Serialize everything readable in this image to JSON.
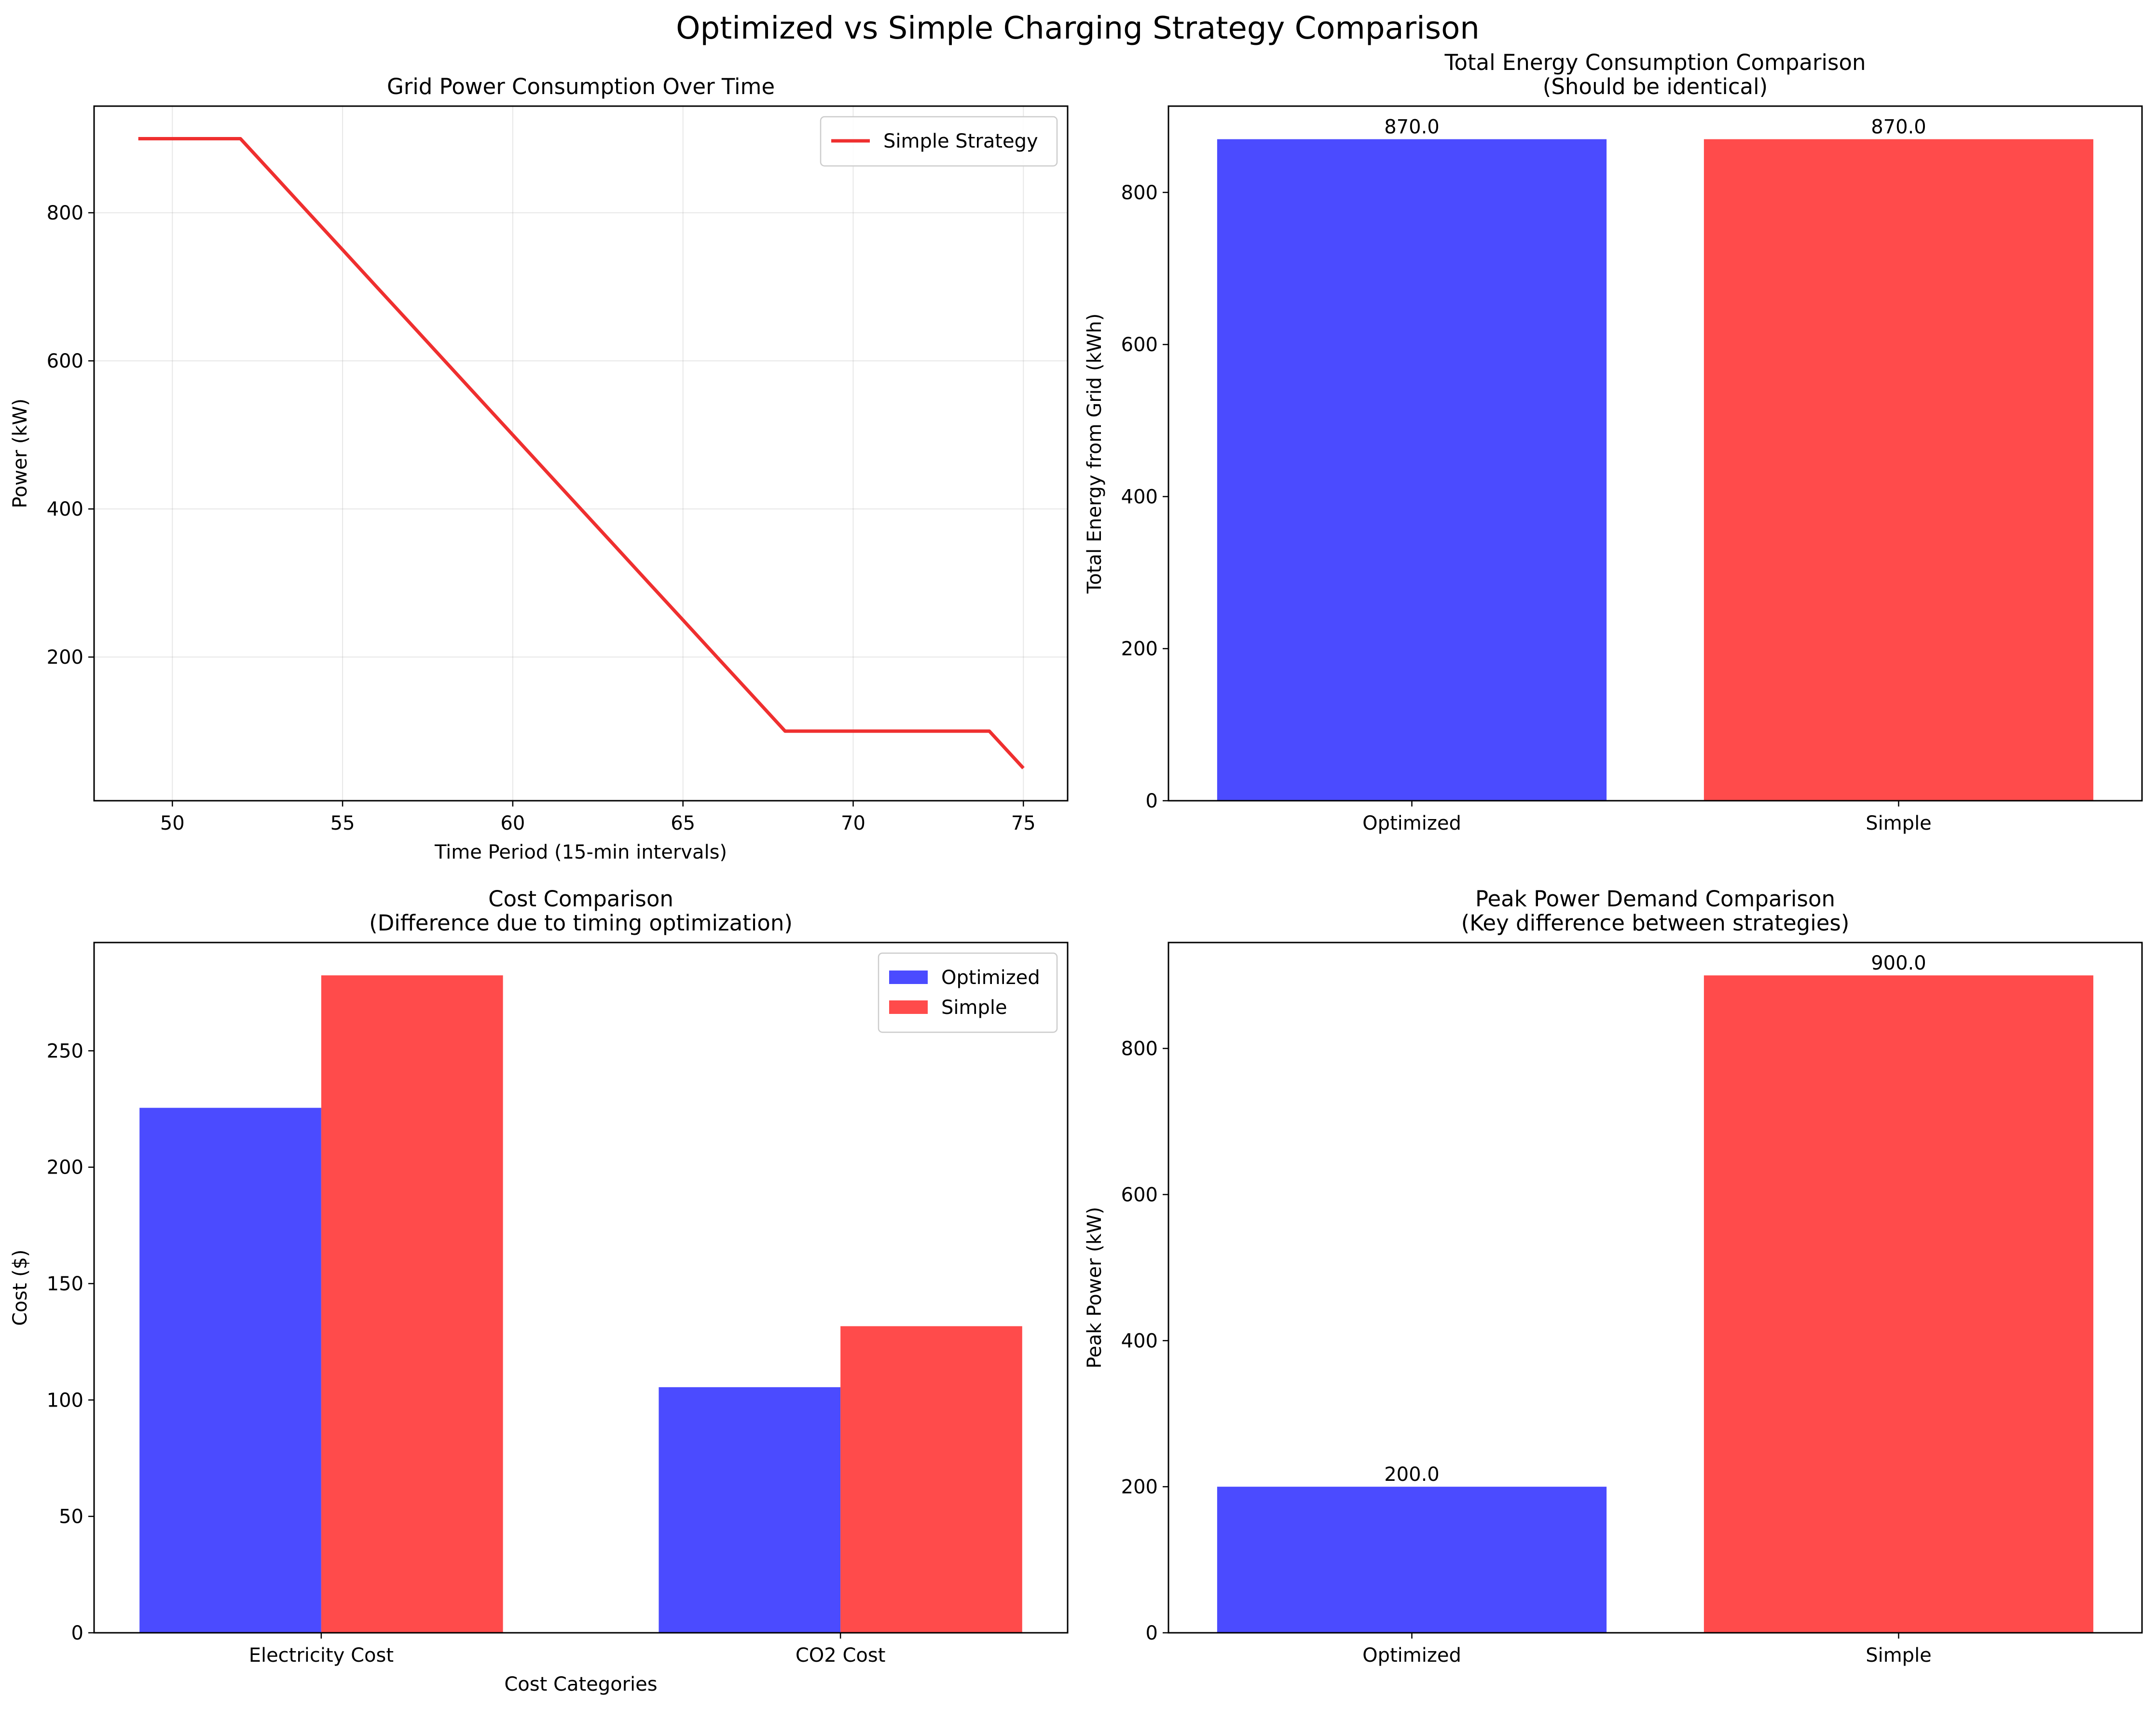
{
  "figure": {
    "title": "Optimized vs Simple Charging Strategy Comparison"
  },
  "colors": {
    "optimized": "#4b4bff",
    "simple": "#ff4b4b",
    "line": "#ef2f2f"
  },
  "chart_data": [
    {
      "id": "grid_power",
      "type": "line",
      "title": "Grid Power Consumption Over Time",
      "xlabel": "Time Period (15-min intervals)",
      "ylabel": "Power (kW)",
      "xlim": [
        47.7,
        76.3
      ],
      "ylim": [
        6,
        944
      ],
      "xticks": [
        50,
        55,
        60,
        65,
        70,
        75
      ],
      "yticks": [
        200,
        400,
        600,
        800
      ],
      "grid": true,
      "legend": "upper right",
      "series": [
        {
          "name": "Simple Strategy",
          "x": [
            49,
            50,
            51,
            52,
            53,
            54,
            55,
            56,
            57,
            58,
            59,
            60,
            61,
            62,
            63,
            64,
            65,
            66,
            67,
            68,
            69,
            70,
            71,
            72,
            73,
            74,
            75
          ],
          "y": [
            900,
            900,
            900,
            900,
            850,
            800,
            750,
            700,
            650,
            600,
            550,
            500,
            450,
            400,
            350,
            300,
            250,
            200,
            150,
            100,
            100,
            100,
            100,
            100,
            100,
            100,
            50
          ]
        }
      ]
    },
    {
      "id": "total_energy",
      "type": "bar",
      "title": "Total Energy Consumption Comparison\n(Should be identical)",
      "xlabel": "",
      "ylabel": "Total Energy from Grid (kWh)",
      "ylim": [
        0,
        913.5
      ],
      "yticks": [
        0,
        200,
        400,
        600,
        800
      ],
      "categories": [
        "Optimized",
        "Simple"
      ],
      "values": [
        870.0,
        870.0
      ],
      "labels": [
        "870.0",
        "870.0"
      ]
    },
    {
      "id": "cost",
      "type": "bar",
      "title": "Cost Comparison\n(Difference due to timing optimization)",
      "xlabel": "Cost Categories",
      "ylabel": "Cost ($)",
      "ylim": [
        0,
        296.5
      ],
      "yticks": [
        0,
        50,
        100,
        150,
        200,
        250
      ],
      "legend": "upper right",
      "categories": [
        "Electricity Cost",
        "CO2 Cost"
      ],
      "series": [
        {
          "name": "Optimized",
          "values": [
            225.5,
            105.5
          ]
        },
        {
          "name": "Simple",
          "values": [
            282.4,
            131.7
          ]
        }
      ]
    },
    {
      "id": "peak_power",
      "type": "bar",
      "title": "Peak Power Demand Comparison\n(Key difference between strategies)",
      "xlabel": "",
      "ylabel": "Peak Power (kW)",
      "ylim": [
        0,
        945
      ],
      "yticks": [
        0,
        200,
        400,
        600,
        800
      ],
      "categories": [
        "Optimized",
        "Simple"
      ],
      "values": [
        200.0,
        900.0
      ],
      "labels": [
        "200.0",
        "900.0"
      ]
    }
  ]
}
